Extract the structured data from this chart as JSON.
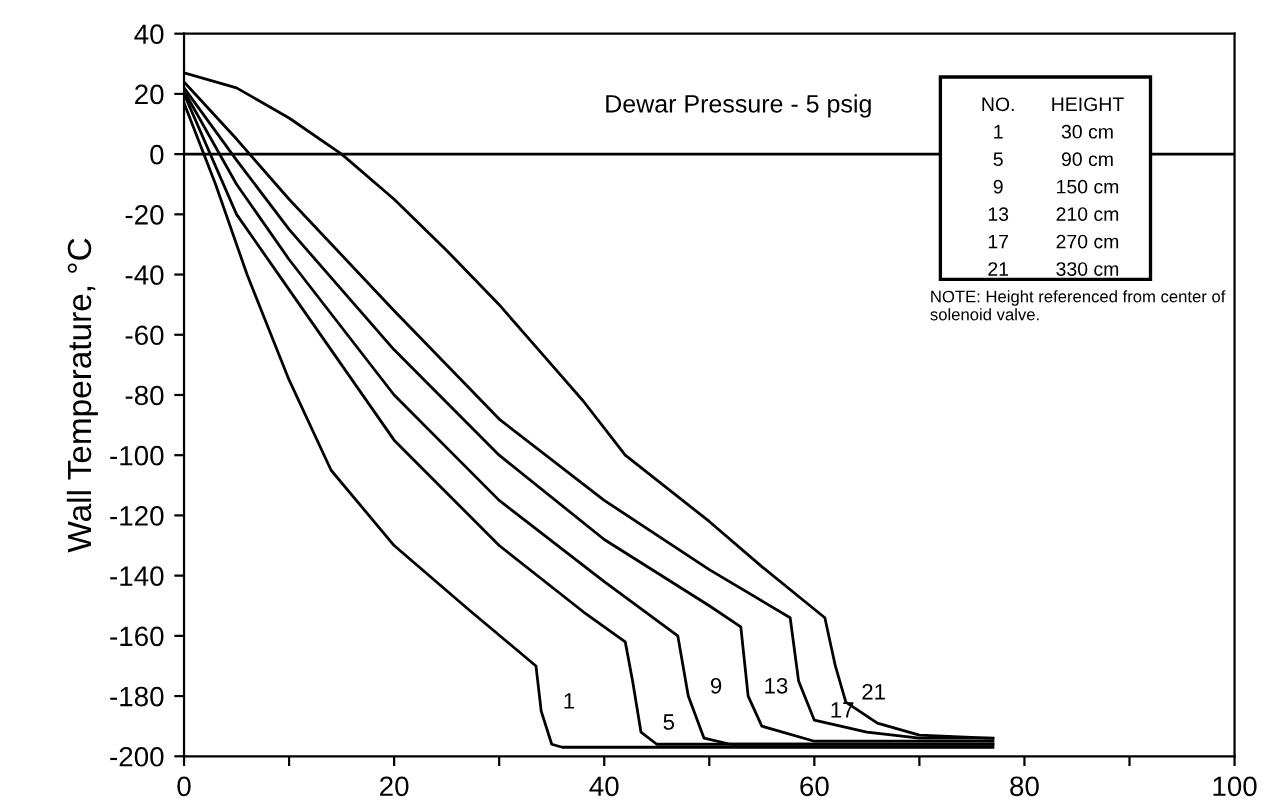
{
  "chart_data": {
    "type": "line",
    "ylabel": "Wall Temperature, °C",
    "xlim": [
      0,
      100
    ],
    "ylim": [
      -200,
      40
    ],
    "xticks": [
      0,
      {
        "value": 10,
        "label": null
      },
      20,
      {
        "value": 30,
        "label": null
      },
      40,
      {
        "value": 50,
        "label": null
      },
      60,
      {
        "value": 70,
        "label": null
      },
      80,
      {
        "value": 90,
        "label": null
      },
      100
    ],
    "yticks": [
      -200,
      -180,
      -160,
      -140,
      -120,
      -100,
      -80,
      -60,
      -40,
      -20,
      0,
      20,
      40
    ],
    "grid": false,
    "marker": "none",
    "line_style": "solid",
    "ref_lines": [
      {
        "axis": "y",
        "value": 0,
        "label": null,
        "color": "#000000"
      }
    ],
    "series": [
      {
        "name": "1",
        "color": "#000000",
        "x": [
          0,
          3,
          6,
          10,
          14,
          20,
          27,
          33.5,
          34,
          35,
          36,
          77
        ],
        "values": [
          17,
          -10,
          -40,
          -75,
          -105,
          -130,
          -151,
          -170,
          -185,
          -196,
          -197,
          -197
        ]
      },
      {
        "name": "5",
        "color": "#000000",
        "x": [
          0,
          5,
          10,
          15,
          20,
          30,
          38,
          42,
          42.7,
          43.5,
          45,
          77
        ],
        "values": [
          20,
          -20,
          -45,
          -70,
          -95,
          -130,
          -152,
          -162,
          -175,
          -192,
          -196,
          -196
        ]
      },
      {
        "name": "9",
        "color": "#000000",
        "x": [
          0,
          5,
          10,
          20,
          30,
          40,
          47,
          48,
          49.5,
          52,
          77
        ],
        "values": [
          21,
          -10,
          -35,
          -80,
          -115,
          -142,
          -160,
          -180,
          -194,
          -196,
          -196
        ]
      },
      {
        "name": "13",
        "color": "#000000",
        "x": [
          0,
          5,
          10,
          20,
          30,
          40,
          50,
          53,
          53.7,
          55,
          60,
          77
        ],
        "values": [
          22,
          -2,
          -25,
          -65,
          -100,
          -128,
          -150,
          -157,
          -180,
          -190,
          -195,
          -195
        ]
      },
      {
        "name": "17",
        "color": "#000000",
        "x": [
          0,
          5,
          10,
          20,
          30,
          40,
          50,
          57.7,
          58.5,
          60,
          65,
          70,
          77
        ],
        "values": [
          24,
          5,
          -15,
          -52,
          -88,
          -115,
          -138,
          -154,
          -175,
          -188,
          -192,
          -194,
          -194
        ]
      },
      {
        "name": "21",
        "color": "#000000",
        "x": [
          0,
          5,
          10,
          15,
          20,
          25,
          30,
          35,
          38,
          42,
          50,
          55,
          61,
          62,
          63,
          66,
          70,
          77
        ],
        "values": [
          27,
          22,
          12,
          0,
          -15,
          -32,
          -50,
          -70,
          -82,
          -100,
          -122,
          -137,
          -154,
          -170,
          -182,
          -189,
          -193,
          -194
        ]
      }
    ],
    "annotations": [
      "Dewar Pressure - 5 psig",
      "NO.",
      "HEIGHT",
      "1",
      "30 cm",
      "5",
      "90 cm",
      "9",
      "150 cm",
      "13",
      "210 cm",
      "17",
      "270 cm",
      "21",
      "330 cm",
      "NOTE: Height referenced from center of solenoid valve."
    ]
  }
}
